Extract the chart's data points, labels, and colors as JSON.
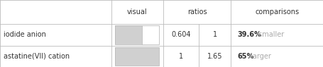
{
  "rows": [
    {
      "name": "iodide anion",
      "ratio1": "0.604",
      "ratio2": "1",
      "comparison_bold": "39.6%",
      "comparison_rest": " smaller",
      "bar_fill": 0.604,
      "bar_color": "#d0d0d0"
    },
    {
      "name": "astatine(VII) cation",
      "ratio1": "1",
      "ratio2": "1.65",
      "comparison_bold": "65%",
      "comparison_rest": " larger",
      "bar_fill": 1.0,
      "bar_color": "#d0d0d0"
    }
  ],
  "header_row": [
    "",
    "visual",
    "ratios",
    "",
    "comparisons"
  ],
  "grid_color": "#bbbbbb",
  "text_color": "#333333",
  "gray_text_color": "#aaaaaa",
  "background_color": "#ffffff",
  "bar_border_color": "#bbbbbb",
  "fontsize": 7.0,
  "col_bounds": [
    0.0,
    0.345,
    0.505,
    0.615,
    0.715,
    1.0
  ],
  "row_bounds": [
    1.0,
    0.64,
    0.32,
    0.0
  ]
}
